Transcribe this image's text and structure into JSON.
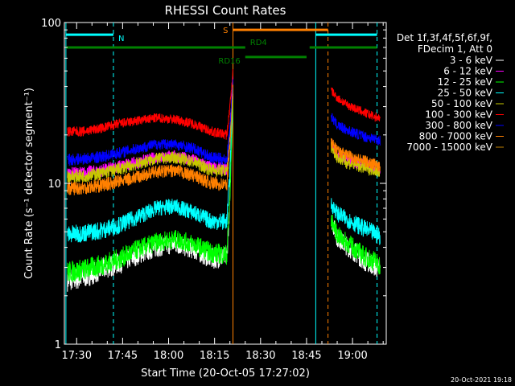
{
  "chart_data": {
    "type": "line",
    "title": "RHESSI Count Rates",
    "xlabel": "Start Time (20-Oct-05 17:27:02)",
    "ylabel": "Count Rate (s⁻¹ detector segment⁻¹)",
    "y_scale": "log",
    "ylim": [
      1,
      100
    ],
    "xlim": [
      "17:26",
      "19:11"
    ],
    "x_ticks": [
      "17:30",
      "17:45",
      "18:00",
      "18:15",
      "18:30",
      "18:45",
      "19:00"
    ],
    "y_ticks": [
      "1",
      "10",
      "100"
    ],
    "grid": false,
    "legend_position": "top-right",
    "legend_header": [
      "Det 1f,3f,4f,5f,6f,9f,",
      "FDecim 1, Att 0"
    ],
    "timestamp": "20-Oct-2021 19:18",
    "x": [
      "17:27",
      "17:32",
      "17:38",
      "17:44",
      "17:50",
      "17:56",
      "18:02",
      "18:08",
      "18:14",
      "18:19",
      "18:20",
      "18:21",
      "18:52",
      "18:53",
      "18:55",
      "18:58",
      "19:01",
      "19:04",
      "19:07",
      "19:09"
    ],
    "series": [
      {
        "name": "3 - 6 keV",
        "color": "#ffffff",
        "values": [
          2.5,
          2.6,
          2.9,
          3.2,
          3.6,
          4.0,
          4.2,
          3.9,
          3.4,
          3.5,
          8,
          40,
          null,
          6,
          4.6,
          4.1,
          3.7,
          3.3,
          3.1,
          2.9
        ]
      },
      {
        "name": "6 - 12 keV",
        "color": "#ff00ff",
        "values": [
          11.5,
          11.6,
          12.0,
          12.8,
          13.5,
          14.5,
          14.8,
          14.0,
          12.5,
          12.2,
          22,
          45,
          null,
          18,
          15,
          14,
          13.5,
          13.0,
          12.5,
          12
        ]
      },
      {
        "name": "12 - 25 keV",
        "color": "#00ff00",
        "values": [
          2.8,
          2.9,
          3.1,
          3.4,
          3.9,
          4.3,
          4.5,
          4.2,
          3.7,
          3.6,
          8,
          35,
          null,
          6,
          4.8,
          4.3,
          3.9,
          3.5,
          3.3,
          3.1
        ]
      },
      {
        "name": "25 - 50 keV",
        "color": "#00ffff",
        "values": [
          4.8,
          4.9,
          5.1,
          5.5,
          6.2,
          7.0,
          7.2,
          6.6,
          5.8,
          5.8,
          12,
          40,
          null,
          7.5,
          6.5,
          6.0,
          5.6,
          5.2,
          4.9,
          4.7
        ]
      },
      {
        "name": "50 - 100 keV",
        "color": "#c8c800",
        "values": [
          11.0,
          11.1,
          11.5,
          12.3,
          13.2,
          14.2,
          14.5,
          13.6,
          12.1,
          12.0,
          20,
          42,
          null,
          17,
          14.5,
          13.5,
          13.0,
          12.5,
          12.2,
          11.8
        ]
      },
      {
        "name": "100 - 300 keV",
        "color": "#ff0000",
        "values": [
          21,
          21,
          22,
          23.5,
          24.5,
          25.5,
          25,
          23.5,
          21,
          20,
          30,
          50,
          null,
          38,
          34,
          31,
          29,
          27.5,
          26,
          25.5
        ]
      },
      {
        "name": "300 - 800 keV",
        "color": "#0000ff",
        "values": [
          14,
          14.2,
          14.6,
          15.5,
          16.5,
          17.5,
          17.5,
          16.5,
          14.5,
          14,
          22,
          44,
          null,
          26,
          23,
          21.5,
          20.5,
          19.5,
          19,
          18.5
        ]
      },
      {
        "name": "800 - 7000 keV",
        "color": "#ff8000",
        "values": [
          9.3,
          9.4,
          9.7,
          10.3,
          11.0,
          11.8,
          12.0,
          11.2,
          10.0,
          9.8,
          17,
          40,
          null,
          18,
          16,
          15,
          14.3,
          13.7,
          13.2,
          12.8
        ]
      },
      {
        "name": "7000 - 15000 keV",
        "color": "#c08000",
        "values": [
          null,
          null,
          null,
          null,
          null,
          null,
          null,
          null,
          null,
          null,
          null,
          null,
          null,
          null,
          null,
          null,
          null,
          null,
          null,
          null
        ]
      }
    ],
    "gap": {
      "start": "18:21",
      "end": "18:50"
    },
    "vertical_lines": [
      {
        "x": "17:26.5",
        "color": "#00ffff",
        "style": "solid"
      },
      {
        "x": "17:42",
        "color": "#00ffff",
        "style": "dashed"
      },
      {
        "x": "18:21",
        "color": "#ff8000",
        "style": "solid"
      },
      {
        "x": "18:48",
        "color": "#00ffff",
        "style": "solid"
      },
      {
        "x": "18:52",
        "color": "#ff8000",
        "style": "dashed"
      },
      {
        "x": "19:08",
        "color": "#00ffff",
        "style": "dashed"
      }
    ],
    "flag_bars": [
      {
        "label": "N",
        "color": "#00ffff",
        "segments": [
          [
            "17:26.5",
            "17:42"
          ],
          [
            "18:48",
            "19:08"
          ]
        ],
        "level": 84
      },
      {
        "label": "S",
        "color": "#ff8000",
        "segments": [
          [
            "18:21",
            "18:52"
          ]
        ],
        "level": 90
      },
      {
        "label": "RD4",
        "color": "#008000",
        "segments": [
          [
            "17:26.5",
            "18:25"
          ],
          [
            "18:46",
            "19:08"
          ]
        ],
        "level": 70
      },
      {
        "label": "RD16",
        "color": "#008000",
        "segments": [
          [
            "18:25",
            "18:45"
          ]
        ],
        "level": 61
      }
    ]
  }
}
